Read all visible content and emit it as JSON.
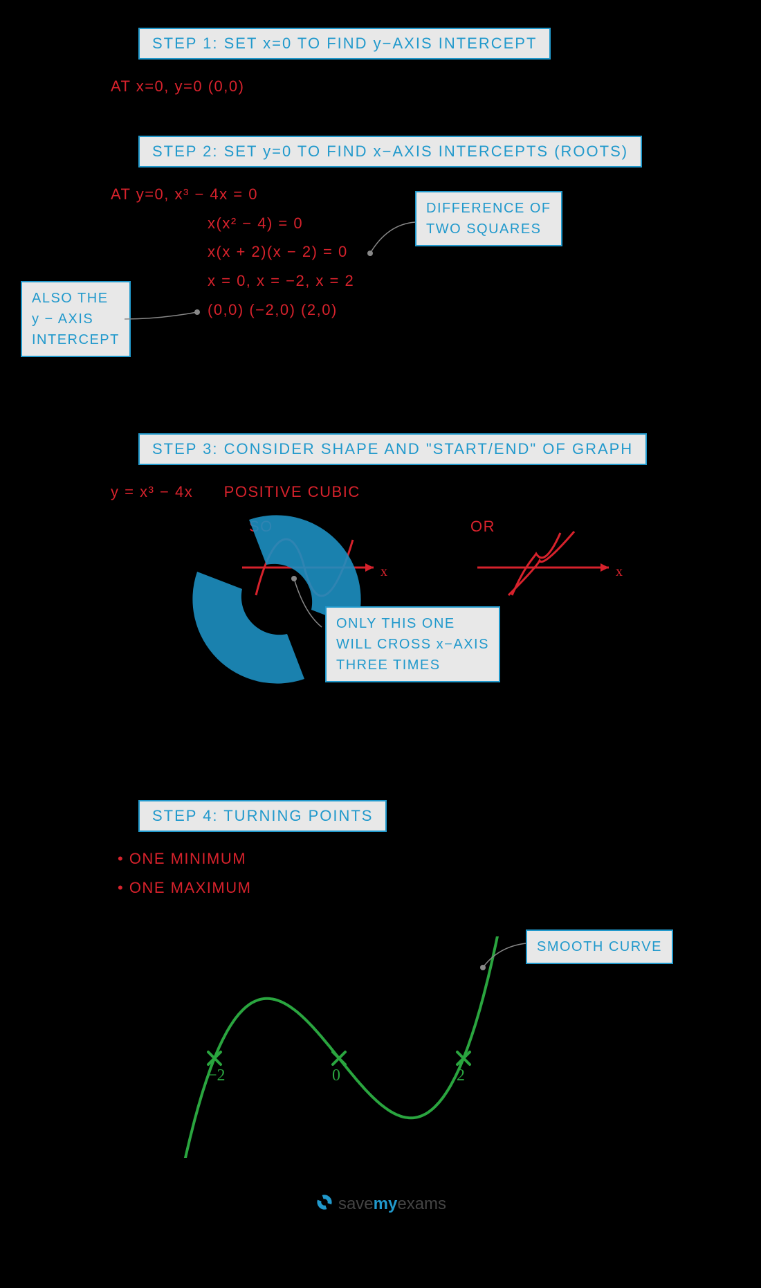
{
  "colors": {
    "bg": "#000000",
    "box_bg": "#e8e8e8",
    "blue": "#2199cc",
    "red": "#d7222c",
    "green": "#2aa53f",
    "watermark": "#1d8fc1",
    "gray_line": "#888888"
  },
  "fonts": {
    "main": "Comic Sans MS",
    "step_size": 22,
    "math_size": 22,
    "anno_size": 20
  },
  "step1": {
    "header": "STEP 1:  SET  x=0  TO  FIND  y−AXIS  INTERCEPT",
    "line1": "AT  x=0,  y=0  (0,0)"
  },
  "step2": {
    "header": "STEP 2:  SET  y=0  TO  FIND  x−AXIS  INTERCEPTS (ROOTS)",
    "line1": "AT   y=0,   x³ − 4x = 0",
    "line2": "x(x² − 4) = 0",
    "line3": "x(x + 2)(x − 2) = 0",
    "line4": "x = 0,   x = −2,   x = 2",
    "line5": "(0,0)   (−2,0)   (2,0)",
    "callout_right_l1": "DIFFERENCE  OF",
    "callout_right_l2": "TWO  SQUARES",
    "callout_left_l1": "ALSO  THE",
    "callout_left_l2": "y − AXIS",
    "callout_left_l3": "INTERCEPT"
  },
  "step3": {
    "header": "STEP 3:   CONSIDER   SHAPE   AND   \"START/END\"  OF  GRAPH",
    "eqn": "y = x³ − 4x",
    "label": "POSITIVE  CUBIC",
    "so": "SO",
    "or": "OR",
    "callout_l1": "ONLY  THIS  ONE",
    "callout_l2": "WILL  CROSS  x−AXIS",
    "callout_l3": "THREE  TIMES"
  },
  "step4": {
    "header": "STEP 4:  TURNING  POINTS",
    "bullet1": "• ONE  MINIMUM",
    "bullet2": "• ONE  MAXIMUM",
    "callout": "SMOOTH  CURVE"
  },
  "graph": {
    "roots": [
      -2,
      0,
      2
    ],
    "xlabels": [
      "−2",
      "0",
      "2"
    ],
    "curve_color": "#2aa53f",
    "curve_width": 4
  },
  "watermark": {
    "text": "savemyexams"
  },
  "brand": {
    "save": "save",
    "my": "my",
    "exams": "exams"
  }
}
